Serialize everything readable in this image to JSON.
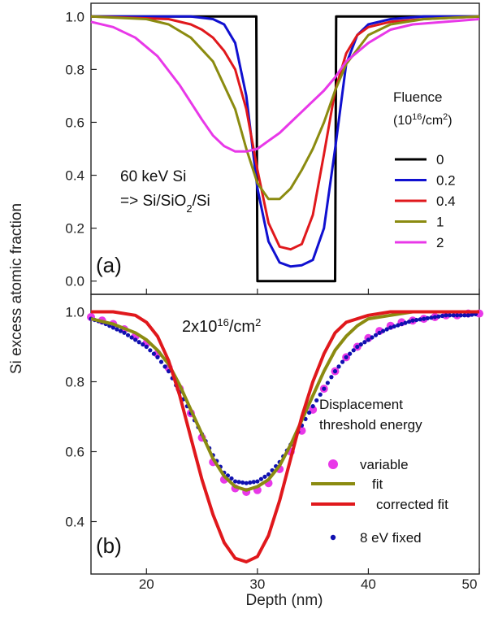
{
  "chart_data": [
    {
      "panel": "a",
      "type": "line",
      "xlim": [
        15,
        50
      ],
      "ylim": [
        -0.05,
        1.05
      ],
      "yticks": [
        0.0,
        0.2,
        0.4,
        0.6,
        0.8,
        1.0
      ],
      "ytick_labels": [
        "0.0",
        "0.2",
        "0.4",
        "0.6",
        "0.8",
        "1.0"
      ],
      "panel_label": "(a)",
      "annotation_line1": "60 keV Si",
      "annotation_line2_prefix": "=> Si/SiO",
      "annotation_line2_sub": "2",
      "annotation_line2_suffix": "/Si",
      "legend_title_line1": "Fluence",
      "legend_unit_open": "(10",
      "legend_unit_exp": "16",
      "legend_unit_mid": "/cm",
      "legend_unit_exp2": "2",
      "legend_unit_close": ")",
      "legend_position": "right",
      "series": [
        {
          "name": "0",
          "color": "#000000",
          "x": [
            15,
            29.9,
            30.0,
            37.0,
            37.1,
            50
          ],
          "y": [
            1.0,
            1.0,
            0.0,
            0.0,
            1.0,
            1.0
          ]
        },
        {
          "name": "0.2",
          "color": "#1010d0",
          "x": [
            15,
            24,
            26,
            27,
            28,
            29,
            30,
            31,
            32,
            33,
            34,
            35,
            36,
            37,
            38,
            39,
            40,
            42,
            45,
            50
          ],
          "y": [
            1.0,
            1.0,
            0.99,
            0.97,
            0.9,
            0.7,
            0.35,
            0.15,
            0.07,
            0.055,
            0.06,
            0.08,
            0.2,
            0.5,
            0.82,
            0.93,
            0.97,
            0.99,
            1.0,
            1.0
          ]
        },
        {
          "name": "0.4",
          "color": "#e0181c",
          "x": [
            15,
            22,
            24,
            25,
            26,
            27,
            28,
            29,
            30,
            31,
            32,
            33,
            34,
            35,
            36,
            37,
            38,
            39,
            40,
            42,
            45,
            50
          ],
          "y": [
            1.0,
            0.99,
            0.97,
            0.95,
            0.92,
            0.87,
            0.8,
            0.65,
            0.42,
            0.22,
            0.13,
            0.12,
            0.14,
            0.25,
            0.48,
            0.72,
            0.86,
            0.93,
            0.96,
            0.98,
            0.99,
            1.0
          ]
        },
        {
          "name": "1",
          "color": "#8b8b10",
          "x": [
            15,
            20,
            22,
            24,
            26,
            28,
            29,
            30,
            31,
            32,
            33,
            34,
            35,
            36,
            37,
            38,
            40,
            42,
            45,
            50
          ],
          "y": [
            1.0,
            0.99,
            0.97,
            0.92,
            0.83,
            0.65,
            0.5,
            0.37,
            0.31,
            0.31,
            0.35,
            0.42,
            0.5,
            0.6,
            0.72,
            0.82,
            0.93,
            0.97,
            0.99,
            1.0
          ]
        },
        {
          "name": "2",
          "color": "#e838e8",
          "x": [
            15,
            17,
            19,
            21,
            23,
            25,
            26,
            27,
            28,
            29,
            30,
            31,
            32,
            33,
            34,
            35,
            36,
            37,
            38,
            40,
            42,
            44,
            47,
            50
          ],
          "y": [
            0.98,
            0.96,
            0.92,
            0.85,
            0.74,
            0.61,
            0.55,
            0.51,
            0.49,
            0.49,
            0.5,
            0.53,
            0.56,
            0.6,
            0.64,
            0.68,
            0.72,
            0.77,
            0.83,
            0.9,
            0.95,
            0.97,
            0.98,
            0.99
          ]
        }
      ]
    },
    {
      "panel": "b",
      "type": "line",
      "xlim": [
        15,
        50
      ],
      "ylim": [
        0.25,
        1.05
      ],
      "xticks": [
        20,
        30,
        40,
        50
      ],
      "xtick_labels": [
        "20",
        "30",
        "40",
        "50"
      ],
      "yticks": [
        0.4,
        0.6,
        0.8,
        1.0
      ],
      "ytick_labels": [
        "0.4",
        "0.6",
        "0.8",
        "1.0"
      ],
      "panel_label": "(b)",
      "annotation_prefix": "2x10",
      "annotation_exp": "16",
      "annotation_mid": "/cm",
      "annotation_exp2": "2",
      "legend_title_line1": "Displacement",
      "legend_title_line2": "threshold energy",
      "legend_position": "right",
      "series": [
        {
          "name": "variable",
          "style": "markers",
          "color": "#e838e8",
          "x": [
            15,
            16,
            17,
            18,
            19,
            20,
            21,
            22,
            23,
            24,
            25,
            26,
            27,
            28,
            29,
            30,
            31,
            32,
            33,
            34,
            35,
            36,
            37,
            38,
            39,
            40,
            41,
            42,
            43,
            44,
            45,
            46,
            47,
            48,
            49,
            50
          ],
          "y": [
            0.985,
            0.975,
            0.965,
            0.95,
            0.93,
            0.91,
            0.88,
            0.84,
            0.78,
            0.71,
            0.64,
            0.57,
            0.52,
            0.495,
            0.485,
            0.49,
            0.51,
            0.55,
            0.6,
            0.66,
            0.72,
            0.78,
            0.83,
            0.87,
            0.9,
            0.925,
            0.945,
            0.96,
            0.97,
            0.975,
            0.98,
            0.985,
            0.99,
            0.99,
            0.995,
            0.995
          ]
        },
        {
          "name": "fit",
          "style": "line",
          "color": "#8b8b10",
          "x": [
            15,
            17,
            19,
            20,
            21,
            22,
            23,
            24,
            25,
            26,
            27,
            28,
            29,
            30,
            31,
            32,
            33,
            34,
            35,
            36,
            37,
            38,
            39,
            40,
            42,
            44,
            46,
            50
          ],
          "y": [
            0.98,
            0.965,
            0.94,
            0.92,
            0.89,
            0.85,
            0.79,
            0.72,
            0.65,
            0.58,
            0.53,
            0.5,
            0.49,
            0.5,
            0.52,
            0.56,
            0.62,
            0.69,
            0.76,
            0.83,
            0.89,
            0.93,
            0.96,
            0.98,
            0.99,
            1.0,
            1.0,
            1.0
          ]
        },
        {
          "name": "corrected fit",
          "style": "line",
          "color": "#e0181c",
          "x": [
            15,
            17,
            19,
            20,
            21,
            22,
            23,
            24,
            25,
            26,
            27,
            28,
            29,
            30,
            31,
            32,
            33,
            34,
            35,
            36,
            37,
            38,
            40,
            42,
            45,
            50
          ],
          "y": [
            1.0,
            1.0,
            0.99,
            0.97,
            0.93,
            0.86,
            0.76,
            0.64,
            0.52,
            0.42,
            0.34,
            0.295,
            0.285,
            0.3,
            0.36,
            0.46,
            0.58,
            0.7,
            0.8,
            0.88,
            0.94,
            0.97,
            0.99,
            1.0,
            1.0,
            1.0
          ]
        },
        {
          "name": "8 eV fixed",
          "style": "dots",
          "color": "#1010b0",
          "x": [
            15,
            16,
            17,
            18,
            19,
            20,
            21,
            22,
            23,
            24,
            25,
            26,
            27,
            28,
            29,
            30,
            31,
            32,
            33,
            34,
            35,
            36,
            37,
            38,
            39,
            40,
            41,
            42,
            43,
            44,
            45,
            46,
            47,
            48,
            49,
            50
          ],
          "y": [
            0.98,
            0.97,
            0.955,
            0.94,
            0.92,
            0.9,
            0.87,
            0.83,
            0.77,
            0.71,
            0.65,
            0.59,
            0.54,
            0.515,
            0.51,
            0.515,
            0.535,
            0.57,
            0.62,
            0.675,
            0.73,
            0.78,
            0.83,
            0.87,
            0.9,
            0.92,
            0.94,
            0.955,
            0.965,
            0.975,
            0.98,
            0.985,
            0.99,
            0.99,
            0.99,
            0.995
          ]
        }
      ]
    }
  ],
  "axes": {
    "xlabel": "Depth (nm)",
    "ylabel": "Si excess atomic fraction"
  }
}
